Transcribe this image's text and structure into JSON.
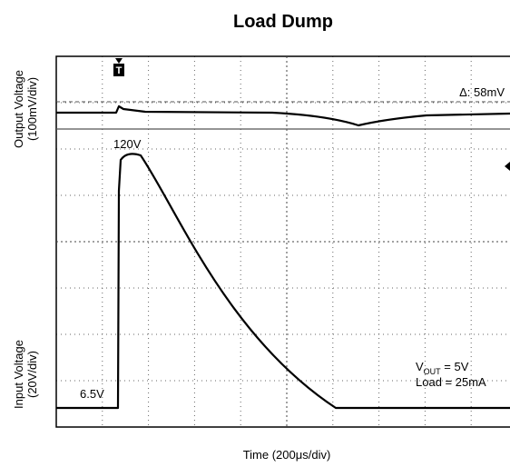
{
  "title": "Load Dump",
  "y_label_top": [
    "Output Voltage",
    "(100mV/div)"
  ],
  "y_label_bottom": [
    "Input Voltage",
    "(20V/div)"
  ],
  "x_label": "Time (200μs/div)",
  "trigger": "T",
  "annotations": {
    "delta": "Δ: 58mV",
    "peak": "120V",
    "base": "6.5V",
    "vout": {
      "base": "V",
      "sub": "OUT",
      "rest": " = 5V"
    },
    "load": "Load = 25mA"
  }
}
